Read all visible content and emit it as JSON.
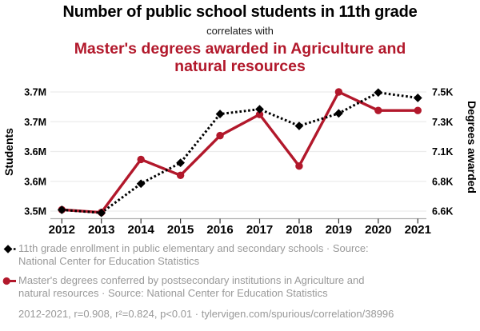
{
  "header": {
    "title": "Number of public school students in 11th grade",
    "connector": "correlates with",
    "subtitle": "Master's degrees awarded in Agriculture and natural resources"
  },
  "chart_data": {
    "type": "line",
    "x": [
      2012,
      2013,
      2014,
      2015,
      2016,
      2017,
      2018,
      2019,
      2020,
      2021
    ],
    "x_tick_labels": [
      "2012",
      "2013",
      "2014",
      "2015",
      "2016",
      "2017",
      "2018",
      "2019",
      "2020",
      "2021"
    ],
    "series": [
      {
        "name": "11th grade enrollment in public elementary and secondary schools",
        "axis": "left",
        "unit": "M students",
        "color": "#000000",
        "marker": "diamond",
        "line_style": "dashed",
        "values": [
          3.502,
          3.497,
          3.546,
          3.581,
          3.663,
          3.671,
          3.643,
          3.664,
          3.699,
          3.69
        ]
      },
      {
        "name": "Master's degrees conferred in Agriculture and natural resources",
        "axis": "right",
        "unit": "K degrees",
        "color": "#b2182b",
        "marker": "circle",
        "line_style": "solid",
        "values": [
          6.61,
          6.59,
          6.99,
          6.87,
          7.17,
          7.33,
          6.94,
          7.5,
          7.36,
          7.36
        ]
      }
    ],
    "left_axis": {
      "label": "Students",
      "min": 3.5,
      "max": 3.7,
      "tick_labels": [
        "3.5M",
        "3.6M",
        "3.6M",
        "3.7M",
        "3.7M"
      ]
    },
    "right_axis": {
      "label": "Degrees awarded",
      "min": 6.6,
      "max": 7.5,
      "tick_labels": [
        "6.6K",
        "6.8K",
        "7.1K",
        "7.3K",
        "7.5K"
      ]
    },
    "grid": "horizontal",
    "legend_position": "bottom"
  },
  "legend": {
    "items": [
      {
        "marker": "black-diamond-dashed-line",
        "text": "11th grade enrollment in public elementary and secondary schools · Source: National Center for Education Statistics"
      },
      {
        "marker": "red-circle-solid-line",
        "text": "Master's degrees conferred by postsecondary institutions in Agriculture and natural resources · Source: National Center for Education Statistics"
      }
    ]
  },
  "footer": {
    "text": "2012-2021, r=0.908, r²=0.824, p<0.01 · tylervigen.com/spurious/correlation/38996"
  },
  "colors": {
    "accent_red": "#b2182b",
    "text_black": "#000000",
    "legend_gray": "#999999",
    "grid_line": "#ececec",
    "axis_line": "#b0b0b0",
    "tick_mark": "#333333"
  }
}
